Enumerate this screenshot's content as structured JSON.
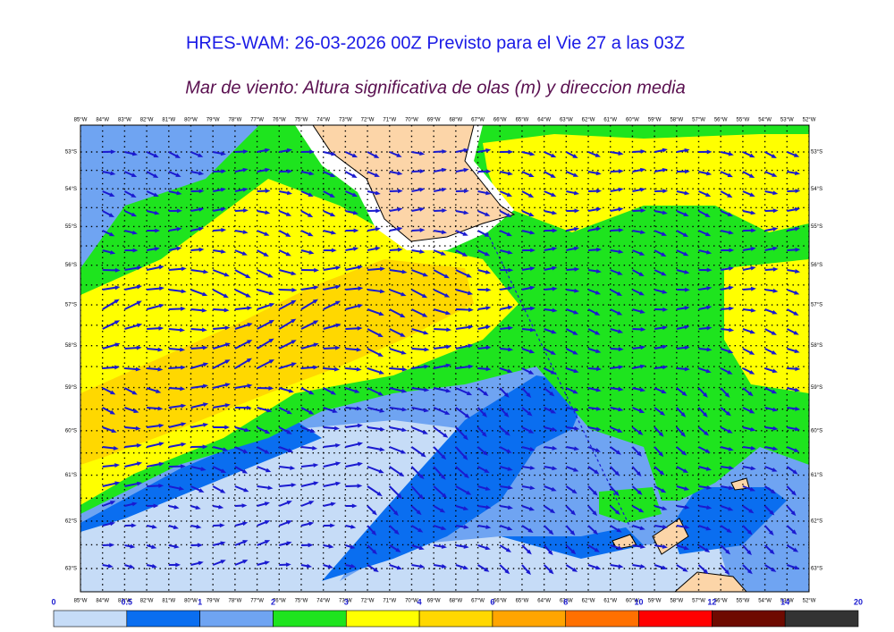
{
  "header": {
    "title": "HRES-WAM: 26-03-2026 00Z Previsto para el Vie 27 a las 03Z",
    "subtitle": "Mar de viento: Altura significativa de olas (m) y direccion media"
  },
  "map": {
    "lon_labels": [
      "85°W",
      "84°W",
      "83°W",
      "82°W",
      "81°W",
      "80°W",
      "79°W",
      "78°W",
      "77°W",
      "76°W",
      "75°W",
      "74°W",
      "73°W",
      "72°W",
      "71°W",
      "70°W",
      "69°W",
      "68°W",
      "67°W",
      "66°W",
      "65°W",
      "64°W",
      "63°W",
      "62°W",
      "61°W",
      "60°W",
      "59°W",
      "58°W",
      "57°W",
      "56°W",
      "55°W",
      "54°W",
      "53°W",
      "52°W"
    ],
    "lat_labels": [
      "53°S",
      "54°S",
      "55°S",
      "56°S",
      "57°S",
      "58°S",
      "59°S",
      "60°S",
      "61°S",
      "62°S",
      "63°S"
    ]
  },
  "colorbar": {
    "ticks": [
      0,
      0.5,
      1,
      2,
      3,
      4,
      6,
      8,
      10,
      12,
      14,
      20
    ],
    "colors": [
      "#c6dcf7",
      "#0a6ef0",
      "#6fa4f2",
      "#1ee41e",
      "#ffff00",
      "#ffd800",
      "#ffa500",
      "#ff7000",
      "#ff0000",
      "#6e0a00",
      "#333333"
    ]
  }
}
